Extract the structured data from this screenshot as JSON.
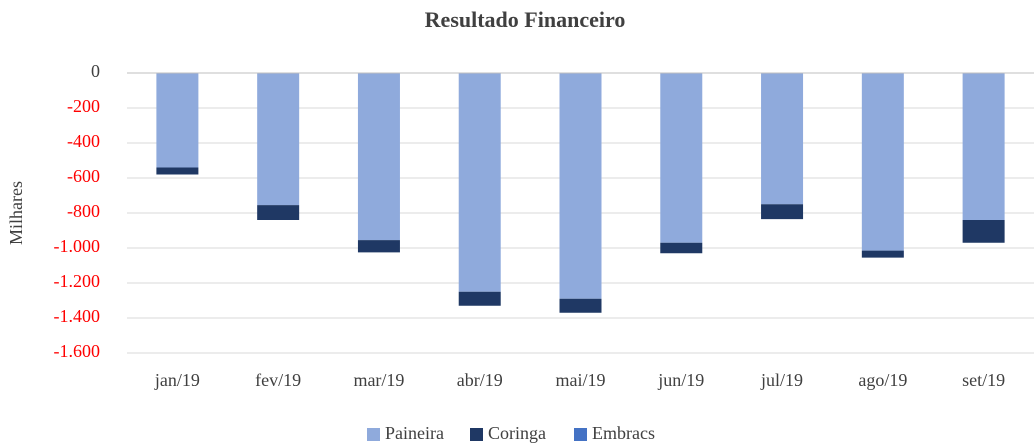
{
  "chart_data": {
    "type": "stacked_bar",
    "title": "Resultado Financeiro",
    "y_label": "Milhares",
    "categories": [
      "jan/19",
      "fev/19",
      "mar/19",
      "abr/19",
      "mai/19",
      "jun/19",
      "jul/19",
      "ago/19",
      "set/19"
    ],
    "series": [
      {
        "name": "Paineira",
        "color": "#8faadc",
        "values": [
          -540,
          -755,
          -955,
          -1250,
          -1290,
          -970,
          -750,
          -1015,
          -840
        ]
      },
      {
        "name": "Coringa",
        "color": "#1f3864",
        "values": [
          -40,
          -85,
          -70,
          -80,
          -80,
          -60,
          -85,
          -40,
          -130
        ]
      },
      {
        "name": "Embracs",
        "color": "#4472c4",
        "values": [
          0,
          0,
          0,
          0,
          0,
          0,
          0,
          0,
          0
        ]
      }
    ],
    "ylim": [
      -1600,
      0
    ],
    "yticks": [
      0,
      -200,
      -400,
      -600,
      -800,
      {
        "value": -1000,
        "label": "-1.000"
      },
      {
        "value": -1200,
        "label": "-1.200"
      },
      {
        "value": -1400,
        "label": "-1.400"
      },
      {
        "value": -1600,
        "label": "-1.600"
      }
    ],
    "grid": true,
    "negative_tick_color": "#ff0000",
    "legend": "bottom"
  }
}
